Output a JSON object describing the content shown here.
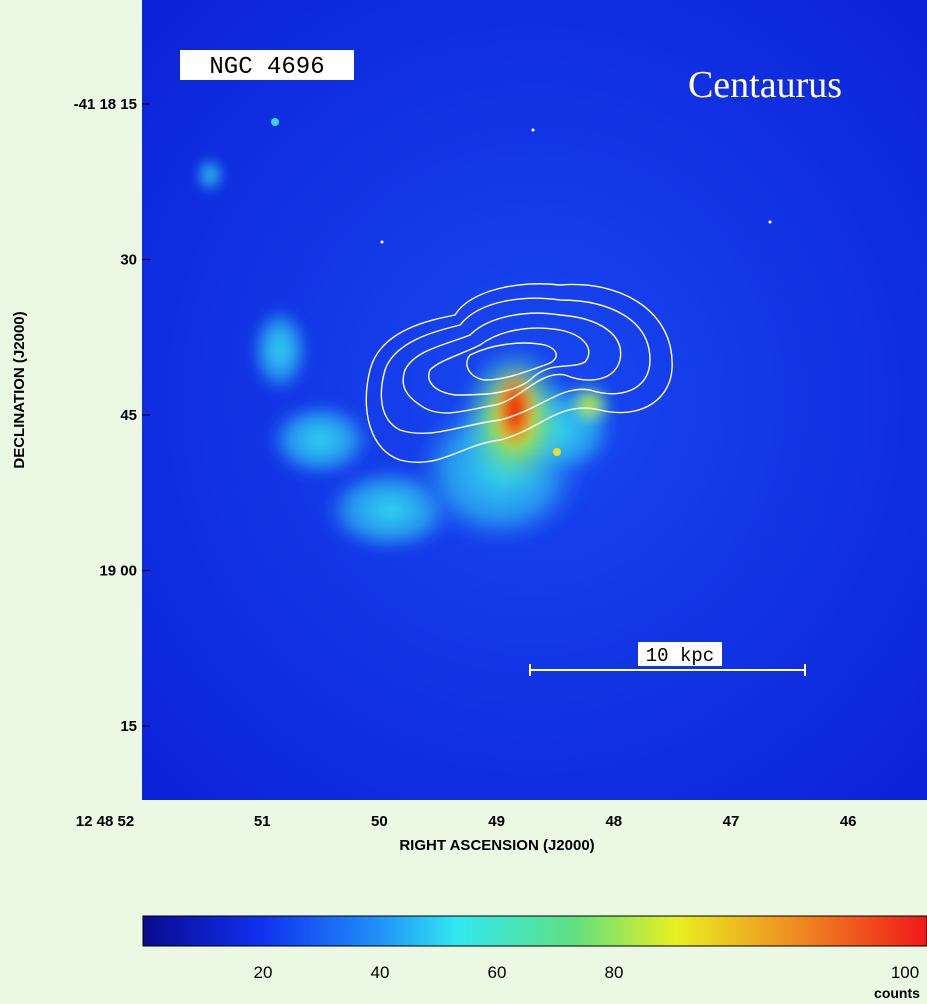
{
  "figure": {
    "object_label": "NGC 4696",
    "cluster_label": "Centaurus",
    "scale_bar_label": "10 kpc",
    "y_axis": {
      "title": "DECLINATION (J2000)",
      "ticks": [
        "-41 18 15",
        "30",
        "45",
        "19 00",
        "15"
      ]
    },
    "x_axis": {
      "title": "RIGHT ASCENSION (J2000)",
      "ticks": [
        "12 48 52",
        "51",
        "50",
        "49",
        "48",
        "47",
        "46"
      ]
    },
    "colorbar": {
      "unit": "counts",
      "ticks": [
        "20",
        "40",
        "60",
        "80",
        "100"
      ]
    }
  }
}
